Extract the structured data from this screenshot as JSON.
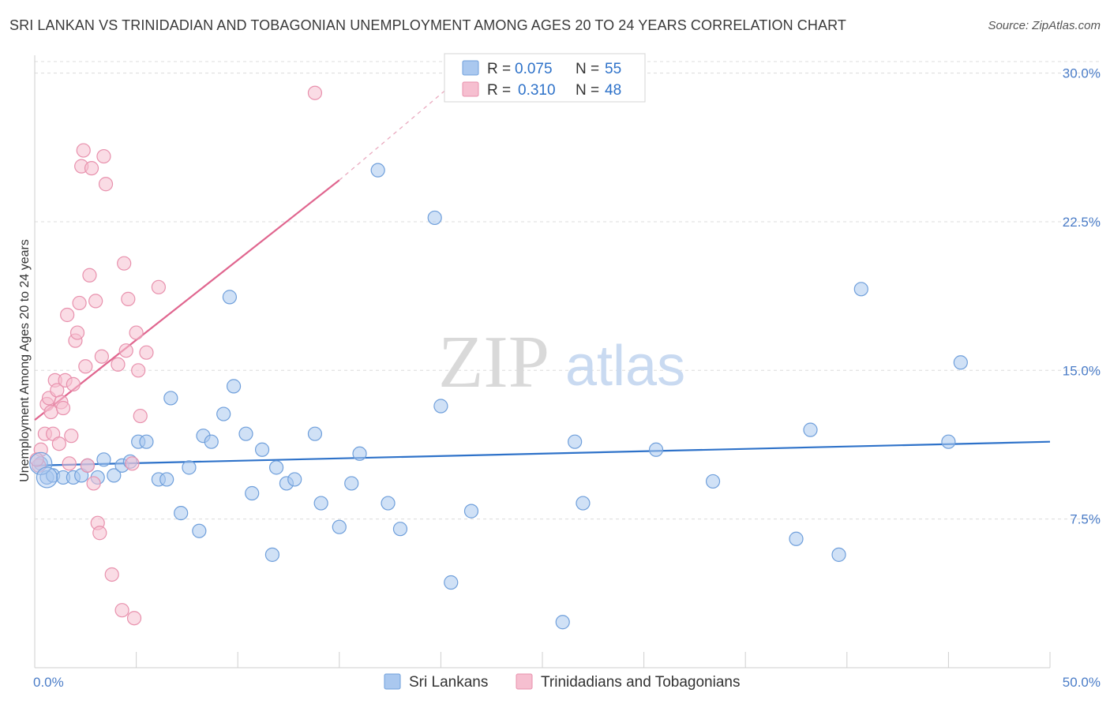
{
  "title": "SRI LANKAN VS TRINIDADIAN AND TOBAGONIAN UNEMPLOYMENT AMONG AGES 20 TO 24 YEARS CORRELATION CHART",
  "source": "Source: ZipAtlas.com",
  "watermark": {
    "zip": "ZIP",
    "atlas": "atlas"
  },
  "colors": {
    "blue_fill": "#aac8ef",
    "blue_stroke": "#6f9fdb",
    "blue_line": "#2e72c9",
    "pink_fill": "#f6bfd0",
    "pink_stroke": "#e891ad",
    "pink_line": "#e0668f",
    "grid": "#dcdcdc",
    "tick_text": "#4a7cc7"
  },
  "chart_data": {
    "type": "scatter",
    "title": "SRI LANKAN VS TRINIDADIAN AND TOBAGONIAN UNEMPLOYMENT AMONG AGES 20 TO 24 YEARS CORRELATION CHART",
    "xlabel": "",
    "ylabel": "Unemployment Among Ages 20 to 24 years",
    "xlim": [
      0,
      50
    ],
    "ylim": [
      0,
      30.9
    ],
    "x_tick_labels": [
      {
        "value": 0,
        "label": "0.0%"
      },
      {
        "value": 50,
        "label": "50.0%"
      }
    ],
    "y_tick_labels": [
      {
        "value": 7.5,
        "label": "7.5%"
      },
      {
        "value": 15.0,
        "label": "15.0%"
      },
      {
        "value": 22.5,
        "label": "22.5%"
      },
      {
        "value": 30.0,
        "label": "30.0%"
      }
    ],
    "legend": [
      {
        "series": "Sri Lankans",
        "r_label": "R =",
        "r_value": "0.075",
        "n_label": "N =",
        "n_value": "55"
      },
      {
        "series": "Trinidadians and Tobagonians",
        "r_label": "R =",
        "r_value": "0.310",
        "n_label": "N =",
        "n_value": "48"
      }
    ],
    "series": [
      {
        "name": "Sri Lankans",
        "color": "blue",
        "trend": {
          "x0": 0,
          "y0": 10.2,
          "x1": 50,
          "y1": 11.4,
          "dashed_to": null
        },
        "points": [
          [
            0.3,
            10.3
          ],
          [
            0.6,
            9.6
          ],
          [
            0.9,
            9.7
          ],
          [
            1.4,
            9.6
          ],
          [
            1.9,
            9.6
          ],
          [
            2.3,
            9.7
          ],
          [
            2.6,
            10.2
          ],
          [
            3.1,
            9.6
          ],
          [
            3.4,
            10.5
          ],
          [
            3.9,
            9.7
          ],
          [
            4.3,
            10.2
          ],
          [
            4.7,
            10.4
          ],
          [
            5.1,
            11.4
          ],
          [
            5.5,
            11.4
          ],
          [
            6.1,
            9.5
          ],
          [
            6.5,
            9.5
          ],
          [
            6.7,
            13.6
          ],
          [
            7.2,
            7.8
          ],
          [
            7.6,
            10.1
          ],
          [
            8.1,
            6.9
          ],
          [
            8.3,
            11.7
          ],
          [
            8.7,
            11.4
          ],
          [
            9.3,
            12.8
          ],
          [
            9.6,
            18.7
          ],
          [
            9.8,
            14.2
          ],
          [
            10.4,
            11.8
          ],
          [
            10.7,
            8.8
          ],
          [
            11.2,
            11.0
          ],
          [
            11.7,
            5.7
          ],
          [
            11.9,
            10.1
          ],
          [
            12.4,
            9.3
          ],
          [
            12.8,
            9.5
          ],
          [
            13.8,
            11.8
          ],
          [
            14.1,
            8.3
          ],
          [
            15.0,
            7.1
          ],
          [
            15.6,
            9.3
          ],
          [
            16.0,
            10.8
          ],
          [
            16.9,
            25.1
          ],
          [
            17.4,
            8.3
          ],
          [
            18.0,
            7.0
          ],
          [
            19.7,
            22.7
          ],
          [
            20.0,
            13.2
          ],
          [
            20.5,
            4.3
          ],
          [
            21.5,
            7.9
          ],
          [
            26.0,
            2.3
          ],
          [
            26.6,
            11.4
          ],
          [
            27.0,
            8.3
          ],
          [
            30.6,
            11.0
          ],
          [
            33.4,
            9.4
          ],
          [
            37.5,
            6.5
          ],
          [
            38.2,
            12.0
          ],
          [
            39.6,
            5.7
          ],
          [
            40.7,
            19.1
          ],
          [
            45.0,
            11.4
          ],
          [
            45.6,
            15.4
          ]
        ]
      },
      {
        "name": "Trinidadians and Tobagonians",
        "color": "pink",
        "trend": {
          "x0": 0,
          "y0": 12.5,
          "x1": 15,
          "y1": 24.6,
          "dashed_to": {
            "x": 20.3,
            "y": 29.2
          }
        },
        "points": [
          [
            0.2,
            10.2
          ],
          [
            0.3,
            11.0
          ],
          [
            0.5,
            11.8
          ],
          [
            0.6,
            13.3
          ],
          [
            0.7,
            13.6
          ],
          [
            0.8,
            12.9
          ],
          [
            0.9,
            11.8
          ],
          [
            1.0,
            14.5
          ],
          [
            1.1,
            14.0
          ],
          [
            1.2,
            11.3
          ],
          [
            1.3,
            13.4
          ],
          [
            1.4,
            13.1
          ],
          [
            1.5,
            14.5
          ],
          [
            1.6,
            17.8
          ],
          [
            1.7,
            10.3
          ],
          [
            1.8,
            11.7
          ],
          [
            1.9,
            14.3
          ],
          [
            2.0,
            16.5
          ],
          [
            2.1,
            16.9
          ],
          [
            2.2,
            18.4
          ],
          [
            2.3,
            25.3
          ],
          [
            2.4,
            26.1
          ],
          [
            2.5,
            15.2
          ],
          [
            2.6,
            10.2
          ],
          [
            2.7,
            19.8
          ],
          [
            2.8,
            25.2
          ],
          [
            2.9,
            9.3
          ],
          [
            3.0,
            18.5
          ],
          [
            3.1,
            7.3
          ],
          [
            3.2,
            6.8
          ],
          [
            3.3,
            15.7
          ],
          [
            3.4,
            25.8
          ],
          [
            3.5,
            24.4
          ],
          [
            3.8,
            4.7
          ],
          [
            4.1,
            15.3
          ],
          [
            4.3,
            2.9
          ],
          [
            4.4,
            20.4
          ],
          [
            4.5,
            16.0
          ],
          [
            4.6,
            18.6
          ],
          [
            4.8,
            10.3
          ],
          [
            4.9,
            2.5
          ],
          [
            5.0,
            16.9
          ],
          [
            5.1,
            15.0
          ],
          [
            5.2,
            12.7
          ],
          [
            5.5,
            15.9
          ],
          [
            6.1,
            19.2
          ],
          [
            13.8,
            29.0
          ],
          [
            0.1,
            10.5
          ]
        ]
      }
    ]
  }
}
